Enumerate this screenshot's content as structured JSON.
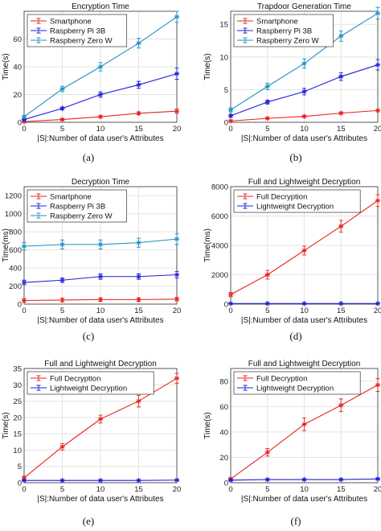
{
  "colors": {
    "red": "#e8231c",
    "blue": "#1f1fd9",
    "teal": "#1f8fc3",
    "grid": "#e3e3e3",
    "axis": "#333333"
  },
  "chart_data": [
    {
      "id": "a",
      "caption": "(a)",
      "type": "line",
      "title": "Encryption Time",
      "xlabel": "|S|:Number of data user's Attributes",
      "ylabel": "Time(s)",
      "xlim": [
        0,
        20
      ],
      "ylim": [
        0,
        80
      ],
      "xticks": [
        "0",
        "5",
        "10",
        "15",
        "20"
      ],
      "yticks": [
        "0",
        "20",
        "40",
        "60"
      ],
      "legend": "top-left",
      "x": [
        0,
        5,
        10,
        15,
        20
      ],
      "series": [
        {
          "name": "Smartphone",
          "color": "#e8231c",
          "marker": "*",
          "values": [
            0.5,
            2,
            4,
            6.5,
            8
          ],
          "errors": [
            0.3,
            0.5,
            0.8,
            1,
            1.5
          ]
        },
        {
          "name": "Raspberry Pi 3B",
          "color": "#1f1fd9",
          "marker": "*",
          "values": [
            2,
            10,
            20,
            27,
            35
          ],
          "errors": [
            0.5,
            1,
            2,
            2.5,
            4
          ]
        },
        {
          "name": "Raspberry Zero W",
          "color": "#1f8fc3",
          "marker": "*",
          "values": [
            4,
            24,
            40,
            57,
            76
          ],
          "errors": [
            1,
            2,
            3,
            3.5,
            4
          ]
        }
      ]
    },
    {
      "id": "b",
      "caption": "(b)",
      "type": "line",
      "title": "Trapdoor Generation Time",
      "xlabel": "|S|:Number of data user's Attributes",
      "ylabel": "Time(s)",
      "xlim": [
        0,
        20
      ],
      "ylim": [
        0,
        17
      ],
      "xticks": [
        "0",
        "5",
        "10",
        "15",
        "20"
      ],
      "yticks": [
        "0",
        "5",
        "10",
        "15"
      ],
      "legend": "top-left",
      "x": [
        0,
        5,
        10,
        15,
        20
      ],
      "series": [
        {
          "name": "Smartphone",
          "color": "#e8231c",
          "marker": "*",
          "values": [
            0.2,
            0.6,
            0.9,
            1.4,
            1.8
          ],
          "errors": [
            0.05,
            0.1,
            0.15,
            0.15,
            0.2
          ]
        },
        {
          "name": "Raspberry Pi 3B",
          "color": "#1f1fd9",
          "marker": "*",
          "values": [
            1,
            3.1,
            4.7,
            7,
            8.8
          ],
          "errors": [
            0.2,
            0.3,
            0.5,
            0.6,
            0.8
          ]
        },
        {
          "name": "Raspberry Zero W",
          "color": "#1f8fc3",
          "marker": "*",
          "values": [
            1.9,
            5.5,
            9,
            13.2,
            16.7
          ],
          "errors": [
            0.3,
            0.5,
            0.7,
            0.8,
            0.9
          ]
        }
      ]
    },
    {
      "id": "c",
      "caption": "(c)",
      "type": "line",
      "title": "Decryption Time",
      "xlabel": "|S|:Number of data user's Attributes",
      "ylabel": "Time(ms)",
      "xlim": [
        0,
        20
      ],
      "ylim": [
        0,
        1300
      ],
      "xticks": [
        "0",
        "5",
        "10",
        "15",
        "20"
      ],
      "yticks": [
        "0",
        "200",
        "400",
        "600",
        "800",
        "1000",
        "1200"
      ],
      "legend": "top-left",
      "x": [
        0,
        5,
        10,
        15,
        20
      ],
      "series": [
        {
          "name": "Smartphone",
          "color": "#e8231c",
          "marker": "*",
          "values": [
            40,
            45,
            50,
            50,
            55
          ],
          "errors": [
            20,
            20,
            20,
            20,
            20
          ]
        },
        {
          "name": "Raspberry Pi 3B",
          "color": "#1f1fd9",
          "marker": "*",
          "values": [
            240,
            265,
            305,
            305,
            325
          ],
          "errors": [
            25,
            25,
            30,
            30,
            35
          ]
        },
        {
          "name": "Raspberry Zero W",
          "color": "#1f8fc3",
          "marker": "*",
          "values": [
            640,
            660,
            660,
            680,
            720
          ],
          "errors": [
            40,
            50,
            50,
            50,
            60
          ]
        }
      ]
    },
    {
      "id": "d",
      "caption": "(d)",
      "type": "line",
      "title": "Full and Lightweight Decryption",
      "xlabel": "|S|:Number of data user's Attributes",
      "ylabel": "Time(ms)",
      "xlim": [
        0,
        20
      ],
      "ylim": [
        0,
        8000
      ],
      "xticks": [
        "0",
        "5",
        "10",
        "15",
        "20"
      ],
      "yticks": [
        "0",
        "2000",
        "4000",
        "6000",
        "8000"
      ],
      "legend": "top-left",
      "x": [
        0,
        5,
        10,
        15,
        20
      ],
      "series": [
        {
          "name": "Full Decryption",
          "color": "#e8231c",
          "marker": "*",
          "values": [
            650,
            2000,
            3650,
            5300,
            7050
          ],
          "errors": [
            150,
            300,
            300,
            400,
            400
          ]
        },
        {
          "name": "Lightweight Decryption",
          "color": "#1f1fd9",
          "marker": "*",
          "values": [
            40,
            40,
            40,
            40,
            40
          ],
          "errors": [
            10,
            10,
            10,
            10,
            10
          ]
        }
      ]
    },
    {
      "id": "e",
      "caption": "(e)",
      "type": "line",
      "title": "Full and Lightweight Decryption",
      "xlabel": "|S|:Number of data user's Attributes",
      "ylabel": "Time(s)",
      "xlim": [
        0,
        20
      ],
      "ylim": [
        0,
        35
      ],
      "xticks": [
        "0",
        "5",
        "10",
        "15",
        "20"
      ],
      "yticks": [
        "0",
        "5",
        "10",
        "15",
        "20",
        "25",
        "30",
        "35"
      ],
      "legend": "top-left",
      "x": [
        0,
        5,
        10,
        15,
        20
      ],
      "series": [
        {
          "name": "Full Decryption",
          "color": "#e8231c",
          "marker": "*",
          "values": [
            1.5,
            11,
            19.5,
            25,
            32
          ],
          "errors": [
            0.5,
            1,
            1.2,
            1.8,
            1.5
          ]
        },
        {
          "name": "Lightweight Decryption",
          "color": "#1f1fd9",
          "marker": "*",
          "values": [
            0.7,
            0.7,
            0.7,
            0.7,
            0.8
          ],
          "errors": [
            0.1,
            0.1,
            0.1,
            0.1,
            0.1
          ]
        }
      ]
    },
    {
      "id": "f",
      "caption": "(f)",
      "type": "line",
      "title": "Full and Lightweight Decryption",
      "xlabel": "|S|:Number of data user's Attributes",
      "ylabel": "Time(s)",
      "xlim": [
        0,
        20
      ],
      "ylim": [
        0,
        90
      ],
      "xticks": [
        "0",
        "5",
        "10",
        "15",
        "20"
      ],
      "yticks": [
        "0",
        "20",
        "40",
        "60",
        "80"
      ],
      "legend": "top-left",
      "x": [
        0,
        5,
        10,
        15,
        20
      ],
      "series": [
        {
          "name": "Full Decryption",
          "color": "#e8231c",
          "marker": "*",
          "values": [
            3,
            24,
            46,
            61,
            77
          ],
          "errors": [
            1,
            3,
            5,
            5,
            5
          ]
        },
        {
          "name": "Lightweight Decryption",
          "color": "#1f1fd9",
          "marker": "*",
          "values": [
            2,
            2.5,
            2.5,
            2.5,
            3
          ],
          "errors": [
            0.5,
            0.5,
            0.5,
            0.5,
            0.5
          ]
        }
      ]
    }
  ]
}
